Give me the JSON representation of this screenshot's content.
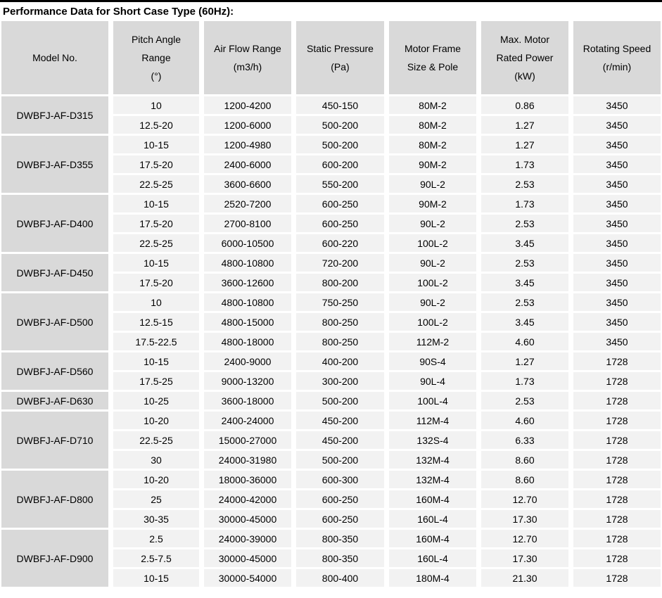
{
  "title": "Performance Data for Short Case Type (60Hz):",
  "colors": {
    "page_bg": "#ffffff",
    "top_bar": "#000000",
    "header_bg": "#d9d9d9",
    "model_cell_bg": "#d9d9d9",
    "data_cell_bg": "#f2f2f2",
    "text": "#000000"
  },
  "table": {
    "headers": [
      {
        "lines": [
          "Model No."
        ]
      },
      {
        "lines": [
          "Pitch Angle",
          "Range",
          "(°)"
        ]
      },
      {
        "lines": [
          "Air Flow Range",
          "(m3/h)"
        ]
      },
      {
        "lines": [
          "Static Pressure",
          "(Pa)"
        ]
      },
      {
        "lines": [
          "Motor Frame",
          "Size & Pole"
        ]
      },
      {
        "lines": [
          "Max. Motor",
          "Rated Power",
          "(kW)"
        ]
      },
      {
        "lines": [
          "Rotating Speed",
          "(r/min)"
        ]
      }
    ],
    "groups": [
      {
        "model": "DWBFJ-AF-D315",
        "rows": [
          [
            "10",
            "1200-4200",
            "450-150",
            "80M-2",
            "0.86",
            "3450"
          ],
          [
            "12.5-20",
            "1200-6000",
            "500-200",
            "80M-2",
            "1.27",
            "3450"
          ]
        ]
      },
      {
        "model": "DWBFJ-AF-D355",
        "rows": [
          [
            "10-15",
            "1200-4980",
            "500-200",
            "80M-2",
            "1.27",
            "3450"
          ],
          [
            "17.5-20",
            "2400-6000",
            "600-200",
            "90M-2",
            "1.73",
            "3450"
          ],
          [
            "22.5-25",
            "3600-6600",
            "550-200",
            "90L-2",
            "2.53",
            "3450"
          ]
        ]
      },
      {
        "model": "DWBFJ-AF-D400",
        "rows": [
          [
            "10-15",
            "2520-7200",
            "600-250",
            "90M-2",
            "1.73",
            "3450"
          ],
          [
            "17.5-20",
            "2700-8100",
            "600-250",
            "90L-2",
            "2.53",
            "3450"
          ],
          [
            "22.5-25",
            "6000-10500",
            "600-220",
            "100L-2",
            "3.45",
            "3450"
          ]
        ]
      },
      {
        "model": "DWBFJ-AF-D450",
        "rows": [
          [
            "10-15",
            "4800-10800",
            "720-200",
            "90L-2",
            "2.53",
            "3450"
          ],
          [
            "17.5-20",
            "3600-12600",
            "800-200",
            "100L-2",
            "3.45",
            "3450"
          ]
        ]
      },
      {
        "model": "DWBFJ-AF-D500",
        "rows": [
          [
            "10",
            "4800-10800",
            "750-250",
            "90L-2",
            "2.53",
            "3450"
          ],
          [
            "12.5-15",
            "4800-15000",
            "800-250",
            "100L-2",
            "3.45",
            "3450"
          ],
          [
            "17.5-22.5",
            "4800-18000",
            "800-250",
            "112M-2",
            "4.60",
            "3450"
          ]
        ]
      },
      {
        "model": "DWBFJ-AF-D560",
        "rows": [
          [
            "10-15",
            "2400-9000",
            "400-200",
            "90S-4",
            "1.27",
            "1728"
          ],
          [
            "17.5-25",
            "9000-13200",
            "300-200",
            "90L-4",
            "1.73",
            "1728"
          ]
        ]
      },
      {
        "model": "DWBFJ-AF-D630",
        "rows": [
          [
            "10-25",
            "3600-18000",
            "500-200",
            "100L-4",
            "2.53",
            "1728"
          ]
        ]
      },
      {
        "model": "DWBFJ-AF-D710",
        "rows": [
          [
            "10-20",
            "2400-24000",
            "450-200",
            "112M-4",
            "4.60",
            "1728"
          ],
          [
            "22.5-25",
            "15000-27000",
            "450-200",
            "132S-4",
            "6.33",
            "1728"
          ],
          [
            "30",
            "24000-31980",
            "500-200",
            "132M-4",
            "8.60",
            "1728"
          ]
        ]
      },
      {
        "model": "DWBFJ-AF-D800",
        "rows": [
          [
            "10-20",
            "18000-36000",
            "600-300",
            "132M-4",
            "8.60",
            "1728"
          ],
          [
            "25",
            "24000-42000",
            "600-250",
            "160M-4",
            "12.70",
            "1728"
          ],
          [
            "30-35",
            "30000-45000",
            "600-250",
            "160L-4",
            "17.30",
            "1728"
          ]
        ]
      },
      {
        "model": "DWBFJ-AF-D900",
        "rows": [
          [
            "2.5",
            "24000-39000",
            "800-350",
            "160M-4",
            "12.70",
            "1728"
          ],
          [
            "2.5-7.5",
            "30000-45000",
            "800-350",
            "160L-4",
            "17.30",
            "1728"
          ],
          [
            "10-15",
            "30000-54000",
            "800-400",
            "180M-4",
            "21.30",
            "1728"
          ]
        ]
      }
    ]
  }
}
